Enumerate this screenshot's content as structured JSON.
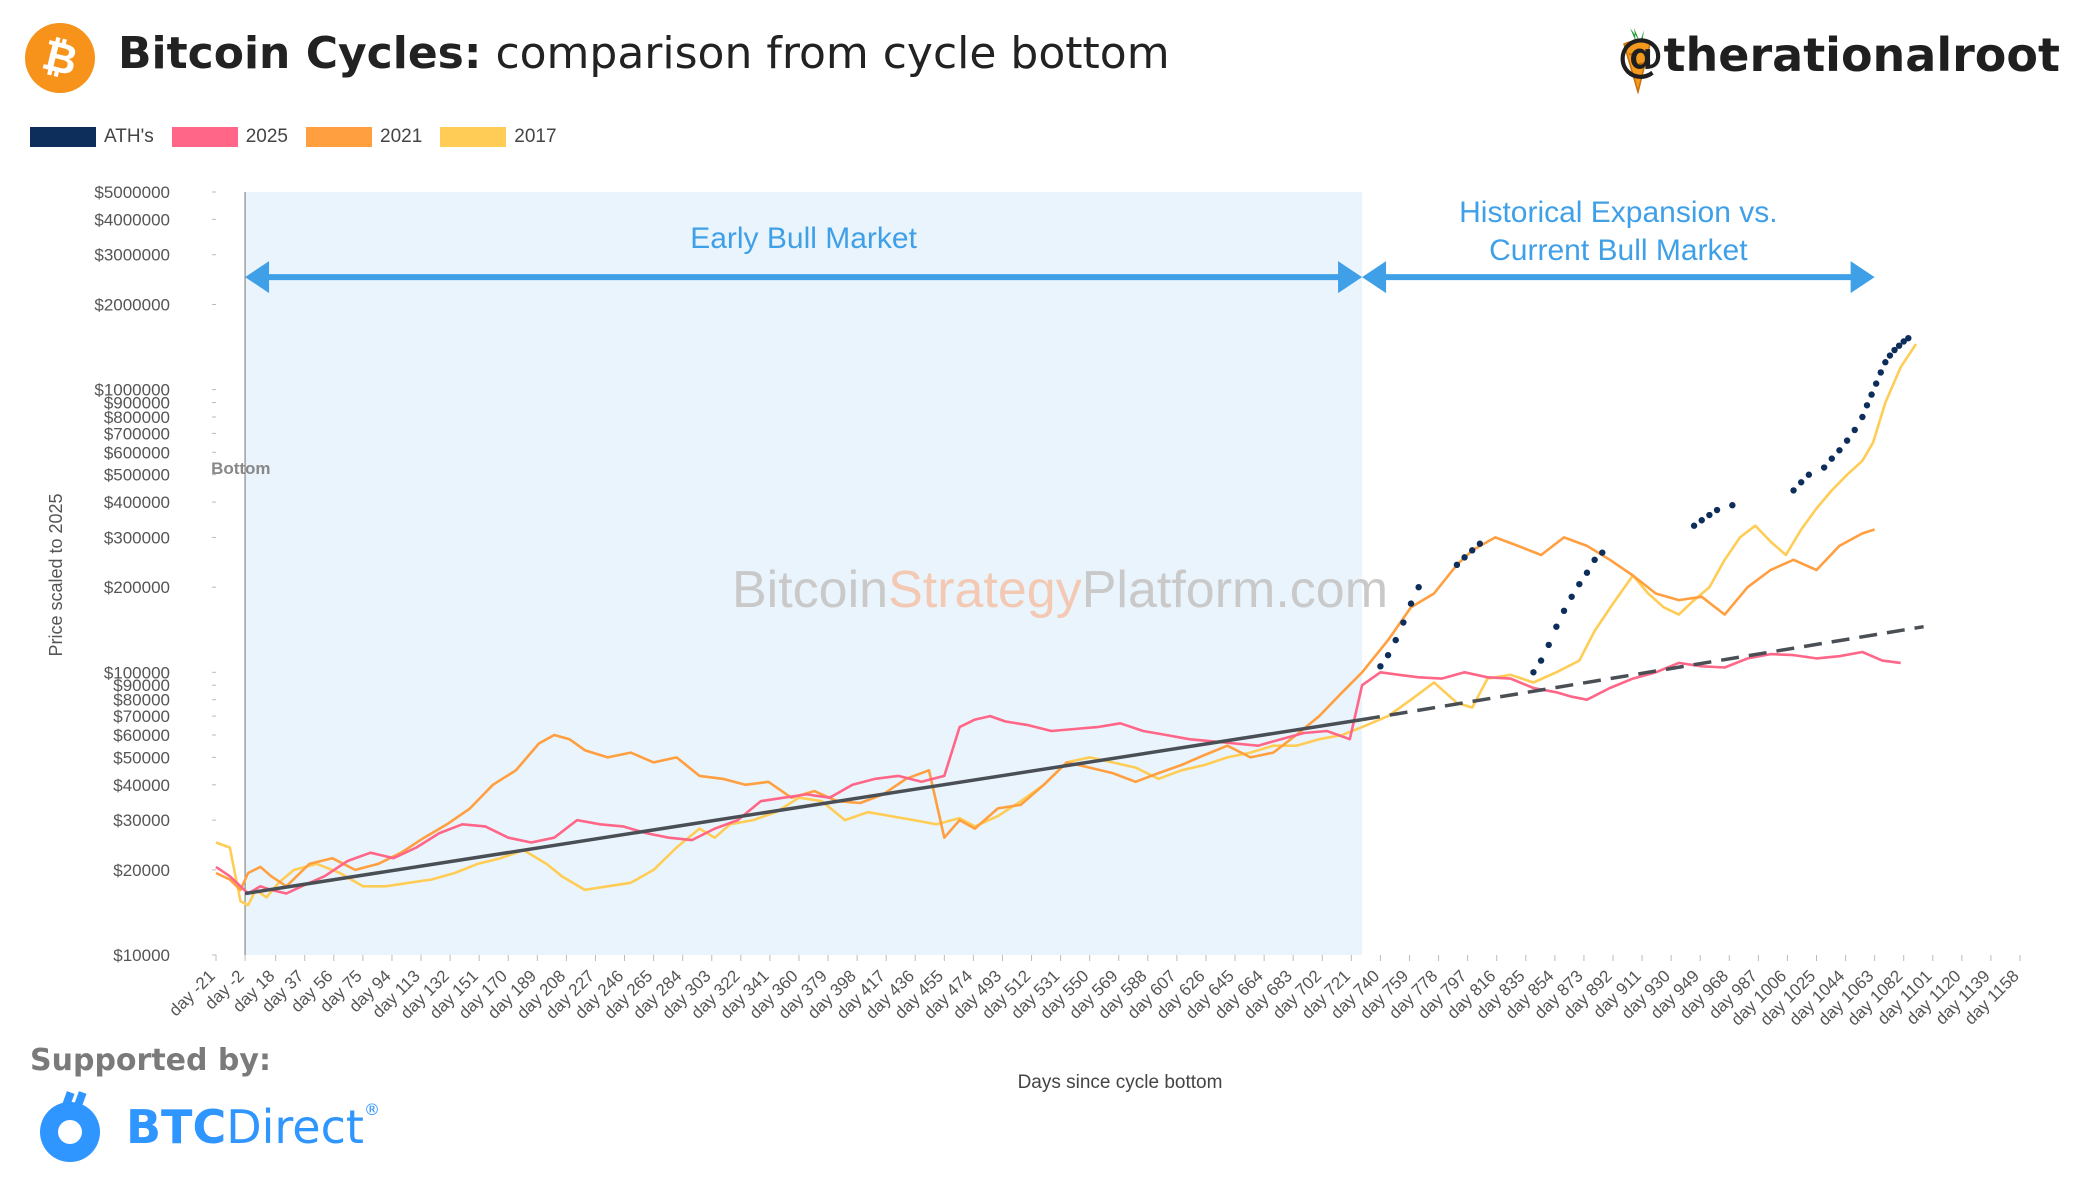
{
  "header": {
    "title_bold": "Bitcoin Cycles:",
    "title_rest": " comparison from cycle bottom",
    "handle": "@therationalroot",
    "logo_icon": "bitcoin-logo-icon",
    "handle_icon": "carrot-icon"
  },
  "footer": {
    "supported_by": "Supported by:",
    "sponsor_bold": "BTC",
    "sponsor_rest": "Direct",
    "sponsor_mark": "®",
    "sponsor_icon": "btcdirect-logo-icon"
  },
  "chart_data": {
    "type": "line",
    "yscale": "log",
    "ylabel": "Price scaled to 2025",
    "xlabel": "Days since cycle bottom",
    "watermark": {
      "part1": "Bitcoin",
      "part2": "Strategy",
      "part3": "Platform.com"
    },
    "annotations": {
      "bottom": "Bottom",
      "early": "Early Bull Market",
      "hist_line1": "Historical Expansion vs.",
      "hist_line2": "Current Bull Market"
    },
    "ylim": [
      10000,
      5000000
    ],
    "xlim": [
      -21,
      1158
    ],
    "yticks": [
      {
        "v": 10000,
        "label": "$10000"
      },
      {
        "v": 20000,
        "label": "$20000"
      },
      {
        "v": 30000,
        "label": "$30000"
      },
      {
        "v": 40000,
        "label": "$40000"
      },
      {
        "v": 50000,
        "label": "$50000"
      },
      {
        "v": 60000,
        "label": "$60000"
      },
      {
        "v": 70000,
        "label": "$70000"
      },
      {
        "v": 80000,
        "label": "$80000"
      },
      {
        "v": 90000,
        "label": "$90000"
      },
      {
        "v": 100000,
        "label": "$100000"
      },
      {
        "v": 200000,
        "label": "$200000"
      },
      {
        "v": 300000,
        "label": "$300000"
      },
      {
        "v": 400000,
        "label": "$400000"
      },
      {
        "v": 500000,
        "label": "$500000"
      },
      {
        "v": 600000,
        "label": "$600000"
      },
      {
        "v": 700000,
        "label": "$700000"
      },
      {
        "v": 800000,
        "label": "$800000"
      },
      {
        "v": 900000,
        "label": "$900000"
      },
      {
        "v": 1000000,
        "label": "$1000000"
      },
      {
        "v": 2000000,
        "label": "$2000000"
      },
      {
        "v": 3000000,
        "label": "$3000000"
      },
      {
        "v": 4000000,
        "label": "$4000000"
      },
      {
        "v": 5000000,
        "label": "$5000000"
      }
    ],
    "xticks": [
      {
        "v": -21,
        "label": "day -21"
      },
      {
        "v": -2,
        "label": "day -2"
      },
      {
        "v": 18,
        "label": "day 18"
      },
      {
        "v": 37,
        "label": "day 37"
      },
      {
        "v": 56,
        "label": "day 56"
      },
      {
        "v": 75,
        "label": "day 75"
      },
      {
        "v": 94,
        "label": "day 94"
      },
      {
        "v": 113,
        "label": "day 113"
      },
      {
        "v": 132,
        "label": "day 132"
      },
      {
        "v": 151,
        "label": "day 151"
      },
      {
        "v": 170,
        "label": "day 170"
      },
      {
        "v": 189,
        "label": "day 189"
      },
      {
        "v": 208,
        "label": "day 208"
      },
      {
        "v": 227,
        "label": "day 227"
      },
      {
        "v": 246,
        "label": "day 246"
      },
      {
        "v": 265,
        "label": "day 265"
      },
      {
        "v": 284,
        "label": "day 284"
      },
      {
        "v": 303,
        "label": "day 303"
      },
      {
        "v": 322,
        "label": "day 322"
      },
      {
        "v": 341,
        "label": "day 341"
      },
      {
        "v": 360,
        "label": "day 360"
      },
      {
        "v": 379,
        "label": "day 379"
      },
      {
        "v": 398,
        "label": "day 398"
      },
      {
        "v": 417,
        "label": "day 417"
      },
      {
        "v": 436,
        "label": "day 436"
      },
      {
        "v": 455,
        "label": "day 455"
      },
      {
        "v": 474,
        "label": "day 474"
      },
      {
        "v": 493,
        "label": "day 493"
      },
      {
        "v": 512,
        "label": "day 512"
      },
      {
        "v": 531,
        "label": "day 531"
      },
      {
        "v": 550,
        "label": "day 550"
      },
      {
        "v": 569,
        "label": "day 569"
      },
      {
        "v": 588,
        "label": "day 588"
      },
      {
        "v": 607,
        "label": "day 607"
      },
      {
        "v": 626,
        "label": "day 626"
      },
      {
        "v": 645,
        "label": "day 645"
      },
      {
        "v": 664,
        "label": "day 664"
      },
      {
        "v": 683,
        "label": "day 683"
      },
      {
        "v": 702,
        "label": "day 702"
      },
      {
        "v": 721,
        "label": "day 721"
      },
      {
        "v": 740,
        "label": "day 740"
      },
      {
        "v": 759,
        "label": "day 759"
      },
      {
        "v": 778,
        "label": "day 778"
      },
      {
        "v": 797,
        "label": "day 797"
      },
      {
        "v": 816,
        "label": "day 816"
      },
      {
        "v": 835,
        "label": "day 835"
      },
      {
        "v": 854,
        "label": "day 854"
      },
      {
        "v": 873,
        "label": "day 873"
      },
      {
        "v": 892,
        "label": "day 892"
      },
      {
        "v": 911,
        "label": "day 911"
      },
      {
        "v": 930,
        "label": "day 930"
      },
      {
        "v": 949,
        "label": "day 949"
      },
      {
        "v": 968,
        "label": "day 968"
      },
      {
        "v": 987,
        "label": "day 987"
      },
      {
        "v": 1006,
        "label": "day 1006"
      },
      {
        "v": 1025,
        "label": "day 1025"
      },
      {
        "v": 1044,
        "label": "day 1044"
      },
      {
        "v": 1063,
        "label": "day 1063"
      },
      {
        "v": 1082,
        "label": "day 1082"
      },
      {
        "v": 1101,
        "label": "day 1101"
      },
      {
        "v": 1120,
        "label": "day 1120"
      },
      {
        "v": 1139,
        "label": "day 1139"
      },
      {
        "v": 1158,
        "label": "day 1158"
      }
    ],
    "regions": [
      {
        "x0": -2,
        "x1": 728,
        "color": "#eaf4fc"
      }
    ],
    "arrows": [
      {
        "x0": -2,
        "x1": 728,
        "y": 2500000,
        "color": "#3fa0e8"
      },
      {
        "x0": 728,
        "x1": 1063,
        "y": 2500000,
        "color": "#3fa0e8"
      }
    ],
    "trendlines": [
      {
        "x": [
          -2,
          728
        ],
        "y": [
          16500,
          68000
        ],
        "style": "solid",
        "color": "#4a4f55"
      },
      {
        "x": [
          728,
          1095
        ],
        "y": [
          68000,
          145000
        ],
        "style": "dashed",
        "color": "#4a4f55"
      }
    ],
    "legend": [
      {
        "name": "ATH's",
        "color": "#0d2d5a"
      },
      {
        "name": "2025",
        "color": "#ff6688"
      },
      {
        "name": "2021",
        "color": "#ff9f40"
      },
      {
        "name": "2017",
        "color": "#ffcd56"
      }
    ],
    "series": [
      {
        "name": "2017",
        "color": "#ffcd56",
        "x": [
          -21,
          -12,
          -5,
          0,
          5,
          12,
          20,
          30,
          45,
          60,
          75,
          90,
          105,
          120,
          135,
          150,
          165,
          180,
          195,
          205,
          220,
          235,
          250,
          265,
          280,
          295,
          305,
          315,
          330,
          345,
          360,
          375,
          390,
          405,
          420,
          435,
          450,
          465,
          475,
          490,
          505,
          520,
          535,
          550,
          565,
          580,
          595,
          610,
          625,
          640,
          655,
          670,
          685,
          700,
          715,
          728,
          745,
          760,
          775,
          790,
          800,
          810,
          825,
          840,
          855,
          870,
          880,
          892,
          905,
          915,
          925,
          935,
          945,
          955,
          965,
          975,
          985,
          995,
          1005,
          1015,
          1025,
          1035,
          1045,
          1055,
          1062,
          1070,
          1080,
          1090
        ],
        "y": [
          25000,
          24000,
          15500,
          15000,
          17000,
          16000,
          18000,
          20000,
          21000,
          19500,
          17500,
          17500,
          18000,
          18500,
          19500,
          21000,
          22000,
          23500,
          21000,
          19000,
          17000,
          17500,
          18000,
          20000,
          24000,
          28000,
          26000,
          29000,
          30000,
          32000,
          36000,
          35000,
          30000,
          32000,
          31000,
          30000,
          29000,
          30500,
          28500,
          31000,
          35000,
          40000,
          48000,
          50000,
          48000,
          46000,
          42000,
          45000,
          47000,
          50000,
          52000,
          55000,
          55000,
          58000,
          60000,
          64000,
          70000,
          80000,
          92000,
          78000,
          75000,
          95000,
          98000,
          92000,
          100000,
          110000,
          140000,
          175000,
          220000,
          190000,
          170000,
          160000,
          180000,
          200000,
          250000,
          300000,
          330000,
          290000,
          260000,
          320000,
          380000,
          440000,
          500000,
          560000,
          650000,
          900000,
          1200000,
          1450000
        ]
      },
      {
        "name": "2021",
        "color": "#ff9f40",
        "x": [
          -21,
          -12,
          -5,
          0,
          8,
          15,
          25,
          40,
          55,
          70,
          85,
          100,
          115,
          130,
          145,
          160,
          175,
          190,
          200,
          210,
          220,
          235,
          250,
          265,
          280,
          295,
          310,
          325,
          340,
          355,
          370,
          385,
          400,
          415,
          430,
          445,
          455,
          465,
          475,
          490,
          505,
          520,
          535,
          550,
          565,
          580,
          595,
          610,
          625,
          640,
          655,
          670,
          685,
          700,
          715,
          728,
          745,
          760,
          775,
          790,
          800,
          815,
          830,
          845,
          860,
          875,
          890,
          905,
          920,
          935,
          950,
          965,
          980,
          995,
          1010,
          1025,
          1040,
          1055,
          1063
        ],
        "y": [
          19500,
          18500,
          17000,
          19500,
          20500,
          19000,
          17500,
          21000,
          22000,
          20000,
          21000,
          23000,
          26000,
          29000,
          33000,
          40000,
          45000,
          56000,
          60000,
          58000,
          53000,
          50000,
          52000,
          48000,
          50000,
          43000,
          42000,
          40000,
          41000,
          36000,
          38000,
          35000,
          34500,
          37000,
          42000,
          45000,
          26000,
          30000,
          28000,
          33000,
          34000,
          40000,
          48000,
          46000,
          44000,
          41000,
          44000,
          47000,
          51000,
          55000,
          50000,
          52000,
          60000,
          70000,
          85000,
          100000,
          130000,
          170000,
          190000,
          240000,
          270000,
          300000,
          280000,
          260000,
          300000,
          280000,
          250000,
          220000,
          190000,
          180000,
          185000,
          160000,
          200000,
          230000,
          250000,
          230000,
          280000,
          310000,
          320000
        ]
      },
      {
        "name": "2025",
        "color": "#ff6688",
        "x": [
          -21,
          -12,
          -5,
          0,
          8,
          15,
          25,
          35,
          50,
          65,
          80,
          95,
          110,
          125,
          140,
          155,
          170,
          185,
          200,
          215,
          230,
          245,
          260,
          275,
          290,
          305,
          320,
          335,
          350,
          365,
          380,
          395,
          410,
          425,
          440,
          455,
          465,
          475,
          485,
          495,
          510,
          525,
          540,
          555,
          570,
          585,
          600,
          615,
          630,
          645,
          660,
          675,
          690,
          705,
          720,
          728,
          740,
          752,
          765,
          780,
          795,
          810,
          825,
          840,
          855,
          865,
          875,
          890,
          905,
          920,
          935,
          950,
          965,
          980,
          995,
          1010,
          1025,
          1040,
          1055,
          1068,
          1080
        ],
        "y": [
          20500,
          19000,
          17500,
          16500,
          17500,
          17000,
          16500,
          17500,
          19000,
          21500,
          23000,
          22000,
          24000,
          27000,
          29000,
          28500,
          26000,
          25000,
          26000,
          30000,
          29000,
          28500,
          27000,
          26000,
          25500,
          28000,
          30000,
          35000,
          36000,
          37000,
          36000,
          40000,
          42000,
          43000,
          41000,
          43000,
          64000,
          68000,
          70000,
          67000,
          65000,
          62000,
          63000,
          64000,
          66000,
          62000,
          60000,
          58000,
          57000,
          56000,
          55000,
          58000,
          61000,
          62000,
          58000,
          90000,
          100000,
          98000,
          96000,
          95000,
          100000,
          96000,
          95000,
          88000,
          85000,
          82000,
          80000,
          88000,
          95000,
          100000,
          108000,
          105000,
          104000,
          112000,
          116000,
          115000,
          112000,
          114000,
          118000,
          110000,
          108000
        ]
      },
      {
        "name": "ATH's",
        "color": "#0d2d5a",
        "x": [
          740,
          745,
          750,
          755,
          760,
          765,
          790,
          795,
          800,
          805,
          840,
          845,
          850,
          855,
          860,
          865,
          870,
          875,
          880,
          885,
          945,
          950,
          955,
          960,
          970,
          1010,
          1015,
          1020,
          1030,
          1035,
          1040,
          1045,
          1050,
          1055,
          1058,
          1061,
          1064,
          1067,
          1070,
          1073,
          1076,
          1079,
          1082,
          1085
        ],
        "y": [
          105000,
          115000,
          130000,
          150000,
          175000,
          200000,
          240000,
          255000,
          270000,
          285000,
          100000,
          110000,
          125000,
          145000,
          165000,
          185000,
          205000,
          225000,
          250000,
          265000,
          330000,
          345000,
          360000,
          375000,
          390000,
          440000,
          470000,
          500000,
          530000,
          570000,
          610000,
          660000,
          720000,
          800000,
          880000,
          960000,
          1050000,
          1150000,
          1250000,
          1320000,
          1380000,
          1430000,
          1480000,
          1520000
        ]
      }
    ]
  }
}
